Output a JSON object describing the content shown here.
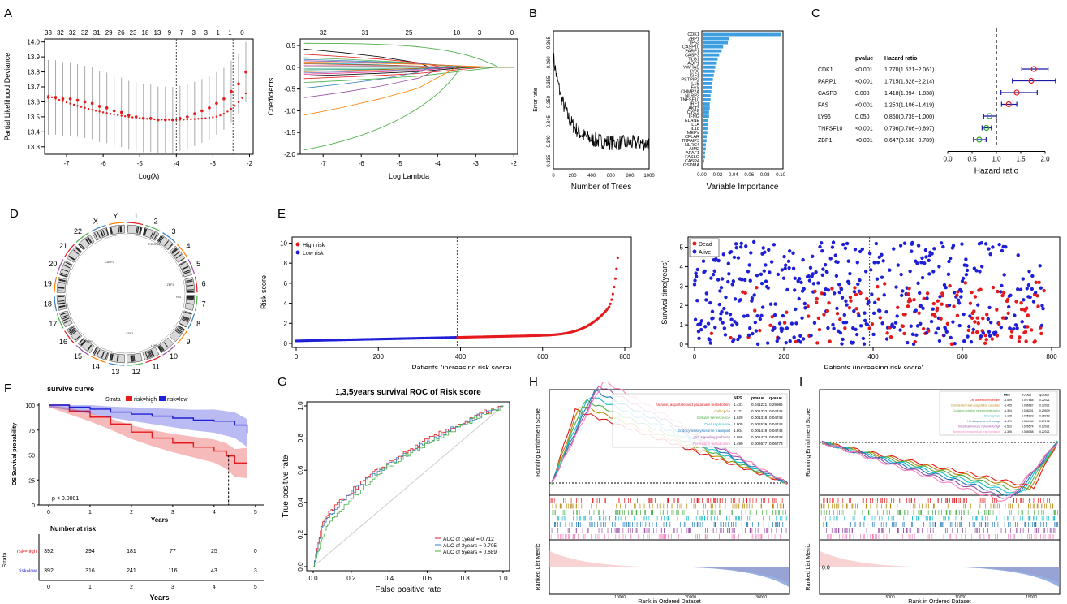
{
  "panel_labels": [
    "A",
    "B",
    "C",
    "D",
    "E",
    "F",
    "G",
    "H",
    "I"
  ],
  "chart_data": [
    {
      "id": "A1",
      "type": "line",
      "xlabel": "Log(λ)",
      "ylabel": "Partial Likelihood Deviance",
      "x_ticks": [
        "-7",
        "-6",
        "-5",
        "-4",
        "-3",
        "-2"
      ],
      "y_ticks": [
        "13.3",
        "13.4",
        "13.5",
        "13.6",
        "13.7",
        "13.8",
        "13.9",
        "14.0"
      ],
      "top_ticks": [
        "33",
        "32",
        "32",
        "32",
        "31",
        "29",
        "26",
        "23",
        "18",
        "13",
        "9",
        "7",
        "3",
        "3",
        "1",
        "1",
        "0"
      ],
      "xlim": [
        -7.6,
        -1.9
      ],
      "ylim": [
        13.25,
        14.02
      ],
      "x": [
        -7.5,
        -7.3,
        -7.1,
        -6.9,
        -6.7,
        -6.5,
        -6.3,
        -6.1,
        -5.9,
        -5.7,
        -5.5,
        -5.3,
        -5.1,
        -4.9,
        -4.7,
        -4.5,
        -4.3,
        -4.1,
        -3.9,
        -3.7,
        -3.5,
        -3.3,
        -3.1,
        -2.9,
        -2.7,
        -2.5,
        -2.3,
        -2.1
      ],
      "y": [
        13.63,
        13.63,
        13.62,
        13.62,
        13.61,
        13.6,
        13.59,
        13.57,
        13.56,
        13.54,
        13.53,
        13.51,
        13.5,
        13.49,
        13.49,
        13.48,
        13.48,
        13.48,
        13.49,
        13.5,
        13.52,
        13.54,
        13.56,
        13.59,
        13.62,
        13.67,
        13.72,
        13.8
      ],
      "vlines": [
        -4.0,
        -2.45
      ]
    },
    {
      "id": "A2",
      "type": "line",
      "xlabel": "Log Lambda",
      "ylabel": "Coefficients",
      "x_ticks": [
        "-7",
        "-6",
        "-5",
        "-4",
        "-3",
        "-2"
      ],
      "y_ticks": [
        "-2.0",
        "-1.5",
        "-1.0",
        "-0.5",
        "0.0",
        "0.5"
      ],
      "top_ticks": [
        "32",
        "31",
        "25",
        "10",
        "3",
        "0"
      ],
      "xlim": [
        -7.6,
        -1.9
      ],
      "ylim": [
        -2.0,
        0.65
      ]
    },
    {
      "id": "B1",
      "type": "line",
      "xlabel": "Number of Trees",
      "ylabel": "Error rate",
      "x_ticks": [
        "0",
        "200",
        "400",
        "600",
        "800",
        "1000"
      ],
      "y_ticks": [
        "0.335",
        "0.340",
        "0.345",
        "0.350",
        "0.355",
        "0.360",
        "0.365"
      ],
      "xlim": [
        0,
        1000
      ],
      "ylim": [
        0.333,
        0.368
      ]
    },
    {
      "id": "B2",
      "type": "bar",
      "xlabel": "Variable Importance",
      "x_ticks": [
        "0.00",
        "0.02",
        "0.04",
        "0.06",
        "0.08",
        "0.10"
      ],
      "categories": [
        "CDK1",
        "ZBP1",
        "TP53",
        "CASP10",
        "PARP1",
        "CASP3",
        "TLG1",
        "AQP1",
        "YWHAE",
        "LY96",
        "IGF1",
        "PSTPIP2",
        "IL1B",
        "FAS",
        "CHMP2A",
        "NLRP3",
        "TNFSF10",
        "IRF1",
        "AKT3",
        "CYCS",
        "IFNG",
        "ELANE",
        "IL1A",
        "IL18",
        "MEFV",
        "CFLAR",
        "TNFAIP3",
        "NLRC4",
        "AIM2",
        "APAF1",
        "FASLG",
        "CASP4",
        "GSDMA"
      ],
      "values": [
        0.099,
        0.034,
        0.032,
        0.026,
        0.024,
        0.021,
        0.019,
        0.018,
        0.016,
        0.015,
        0.014,
        0.013,
        0.012,
        0.012,
        0.011,
        0.01,
        0.01,
        0.009,
        0.009,
        0.008,
        0.008,
        0.007,
        0.007,
        0.006,
        0.006,
        0.005,
        0.005,
        0.004,
        0.004,
        0.003,
        0.003,
        0.002,
        0.001
      ],
      "xlim": [
        0,
        0.103
      ]
    },
    {
      "id": "C",
      "type": "scatter",
      "xlabel": "Hazard ratio",
      "col_headers": [
        "pvalue",
        "Hazard ratio"
      ],
      "x_ticks": [
        "0.0",
        "0.5",
        "1.0",
        "1.5",
        "2.0"
      ],
      "xlim": [
        0,
        2.2
      ],
      "rows": [
        {
          "gene": "CDK1",
          "p": "<0.001",
          "hr": "1.770(1.521−2.061)",
          "v": 1.77,
          "lo": 1.521,
          "hi": 2.061
        },
        {
          "gene": "PARP1",
          "p": "<0.001",
          "hr": "1.715(1.328−2.214)",
          "v": 1.715,
          "lo": 1.328,
          "hi": 2.214
        },
        {
          "gene": "CASP3",
          "p": "0.008",
          "hr": "1.418(1.094−1.838)",
          "v": 1.418,
          "lo": 1.094,
          "hi": 1.838
        },
        {
          "gene": "FAS",
          "p": "<0.001",
          "hr": "1.253(1.106−1.419)",
          "v": 1.253,
          "lo": 1.106,
          "hi": 1.419
        },
        {
          "gene": "LY96",
          "p": "0.050",
          "hr": "0.860(0.739−1.000)",
          "v": 0.86,
          "lo": 0.739,
          "hi": 1.0
        },
        {
          "gene": "TNFSF10",
          "p": "<0.001",
          "hr": "0.796(0.706−0.897)",
          "v": 0.796,
          "lo": 0.706,
          "hi": 0.897
        },
        {
          "gene": "ZBP1",
          "p": "<0.001",
          "hr": "0.647(0.530−0.789)",
          "v": 0.647,
          "lo": 0.53,
          "hi": 0.789
        }
      ]
    },
    {
      "id": "D",
      "type": "other",
      "chromosomes": [
        "1",
        "2",
        "3",
        "4",
        "5",
        "6",
        "7",
        "8",
        "9",
        "10",
        "11",
        "12",
        "13",
        "14",
        "15",
        "16",
        "17",
        "18",
        "19",
        "20",
        "21",
        "22",
        "X",
        "Y"
      ],
      "gene_labels": [
        "CASP3",
        "TNFSF10",
        "ZBP1",
        "FAS",
        "CDK1",
        "PARP1",
        "LY96"
      ]
    },
    {
      "id": "E1",
      "type": "scatter",
      "xlabel": "Patients (increasing risk socre)",
      "ylabel": "Risk score",
      "x_ticks": [
        "0",
        "200",
        "400",
        "600",
        "800"
      ],
      "y_ticks": [
        "0",
        "2",
        "4",
        "6",
        "8",
        "10"
      ],
      "legend": [
        "High risk",
        "Low risk"
      ],
      "xlim": [
        0,
        800
      ],
      "ylim": [
        0,
        10.2
      ],
      "cutoff_index": 392,
      "cutoff_value": 0.93
    },
    {
      "id": "E2",
      "type": "scatter",
      "xlabel": "Patients (increasing risk socre)",
      "ylabel": "Survival time(years)",
      "x_ticks": [
        "0",
        "200",
        "400",
        "600",
        "800"
      ],
      "y_ticks": [
        "0",
        "1",
        "2",
        "3",
        "4",
        "5"
      ],
      "legend": [
        "Dead",
        "Alive"
      ],
      "xlim": [
        0,
        800
      ],
      "ylim": [
        0,
        5.4
      ]
    },
    {
      "id": "F",
      "type": "line",
      "title": "survive curve",
      "xlabel": "Years",
      "ylabel": "OS Survival probability",
      "strata_label": "Strata",
      "legend": [
        "risk=high",
        "risk=low"
      ],
      "x_ticks": [
        "0",
        "1",
        "2",
        "3",
        "4",
        "5"
      ],
      "y_ticks": [
        "0",
        "25",
        "50",
        "75",
        "100"
      ],
      "pvalue": "p < 0.0001",
      "xlim": [
        0,
        5.2
      ],
      "ylim": [
        0,
        100
      ],
      "series": [
        {
          "name": "risk=high",
          "x": [
            0,
            0.5,
            1,
            1.5,
            2,
            2.5,
            3,
            3.5,
            4,
            4.3,
            4.5,
            4.8
          ],
          "y": [
            100,
            94,
            88,
            81,
            73,
            67,
            62,
            58,
            54,
            49,
            42,
            42
          ]
        },
        {
          "name": "risk=low",
          "x": [
            0,
            0.5,
            1,
            1.5,
            2,
            2.5,
            3,
            3.5,
            4,
            4.5,
            4.8
          ],
          "y": [
            100,
            98,
            96,
            93,
            91,
            89,
            87,
            85,
            84,
            80,
            72
          ]
        }
      ],
      "risk_table": {
        "title": "Number at risk",
        "rows": [
          {
            "name": "risk=high",
            "values": [
              "392",
              "294",
              "181",
              "77",
              "25",
              "0"
            ]
          },
          {
            "name": "risk=low",
            "values": [
              "392",
              "316",
              "241",
              "116",
              "43",
              "3"
            ]
          }
        ]
      }
    },
    {
      "id": "G",
      "type": "line",
      "title": "1,3,5years survival ROC of Risk score",
      "xlabel": "False positive rate",
      "ylabel": "True positive rate",
      "x_ticks": [
        "0.0",
        "0.2",
        "0.4",
        "0.6",
        "0.8",
        "1.0"
      ],
      "y_ticks": [
        "0.0",
        "0.2",
        "0.4",
        "0.6",
        "0.8",
        "1.0"
      ],
      "xlim": [
        0,
        1
      ],
      "ylim": [
        0,
        1
      ],
      "series": [
        {
          "name": "AUC of 1year = 0.712",
          "x": [
            0,
            0.05,
            0.1,
            0.2,
            0.3,
            0.4,
            0.5,
            0.6,
            0.7,
            0.8,
            0.9,
            1
          ],
          "y": [
            0,
            0.28,
            0.36,
            0.47,
            0.57,
            0.65,
            0.72,
            0.79,
            0.85,
            0.9,
            0.96,
            1
          ]
        },
        {
          "name": "AUC of 3years = 0.705",
          "x": [
            0,
            0.05,
            0.1,
            0.2,
            0.3,
            0.4,
            0.5,
            0.6,
            0.7,
            0.8,
            0.9,
            1
          ],
          "y": [
            0,
            0.26,
            0.34,
            0.46,
            0.56,
            0.64,
            0.71,
            0.78,
            0.84,
            0.9,
            0.96,
            1
          ]
        },
        {
          "name": "AUC of 5years = 0.689",
          "x": [
            0,
            0.05,
            0.1,
            0.2,
            0.3,
            0.4,
            0.5,
            0.6,
            0.7,
            0.8,
            0.9,
            1
          ],
          "y": [
            0,
            0.2,
            0.3,
            0.42,
            0.54,
            0.63,
            0.7,
            0.77,
            0.83,
            0.89,
            0.95,
            1
          ]
        }
      ]
    },
    {
      "id": "H",
      "type": "line",
      "ylabel": "Running Enrichment Score",
      "ylabel2": "Ranked List Metric",
      "xlabel": "Rank in Ordered Dataset",
      "table_headers": [
        "NES",
        "pvalue",
        "qvalue"
      ],
      "table_rows": [
        {
          "name": "Alanine, aspartate and glutamate metabolism",
          "nes": "1.431",
          "p": "0.041221",
          "q": "0.29986"
        },
        {
          "name": "Cell cycle",
          "nes": "2.121",
          "p": "0.001323",
          "q": "0.04748"
        },
        {
          "name": "Cellular senescence",
          "nes": "1.629",
          "p": "0.001318",
          "q": "0.04748"
        },
        {
          "name": "DNA replication",
          "nes": "1.905",
          "p": "0.001539",
          "q": "0.04748"
        },
        {
          "name": "Endocytosis/lysosome transport",
          "nes": "1.804",
          "p": "0.001419",
          "q": "0.04748"
        },
        {
          "name": "p53 signaling pathway",
          "nes": "1.656",
          "p": "0.001473",
          "q": "0.04748"
        },
        {
          "name": "Pyrimidine metabolism",
          "nes": "1.490",
          "p": "0.002677",
          "q": "0.06773"
        }
      ],
      "x_ticks": [
        "10000",
        "20000",
        "30000"
      ]
    },
    {
      "id": "I",
      "type": "line",
      "ylabel": "Running Enrichment Score",
      "ylabel2": "Ranked List Metric",
      "xlabel": "Rank in Ordered Dataset",
      "y2_tick": "0.0",
      "table_headers": [
        "NES",
        "pvalue",
        "qvalue"
      ],
      "table_rows": [
        {
          "name": "Cell adhesion molecules",
          "nes": "-1.509",
          "p": "0.027668",
          "q": "0.22021"
        },
        {
          "name": "Complement and coagulation cascades",
          "nes": "-1.425",
          "p": "0.036667",
          "q": "0.22021"
        },
        {
          "name": "Cytokine-cytokine receptor interaction",
          "nes": "-1.304",
          "p": "0.068201",
          "q": "0.29509"
        },
        {
          "name": "Efferocytosis",
          "nes": "-1.128",
          "p": "0.045893",
          "q": "0.25913"
        },
        {
          "name": "Hematopoietic cell lineage",
          "nes": "-1.479",
          "p": "0.044444",
          "q": "0.27102"
        },
        {
          "name": "Intestinal immune network for IgA",
          "nes": "-1.512",
          "p": "0.026574",
          "q": "0.22021"
        },
        {
          "name": "Neutrophil extracellular trap formation",
          "nes": "-1.395",
          "p": "0.038058",
          "q": "0.22021"
        }
      ],
      "x_ticks": [
        "5000",
        "10000",
        "15000"
      ]
    }
  ],
  "colors": {
    "red": "#e41a1c",
    "blue": "#1f1fd6",
    "steelblue": "#3d9fe0",
    "grey": "#9a9a9a"
  }
}
